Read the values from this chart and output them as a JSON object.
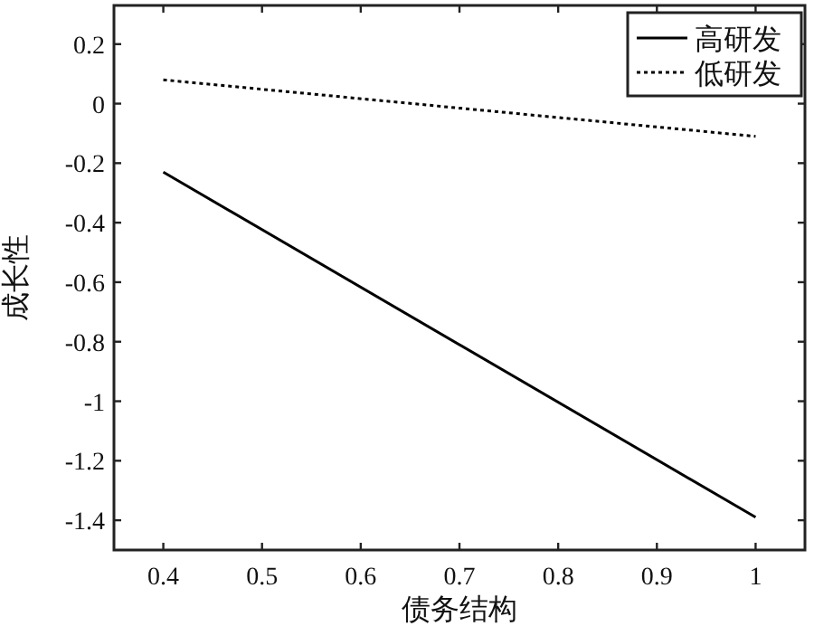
{
  "chart_data": {
    "type": "line",
    "xlabel": "债务结构",
    "ylabel": "成长性",
    "x": [
      0.4,
      1
    ],
    "series": [
      {
        "name": "高研发",
        "color": "#000000",
        "line_style": "solid",
        "values": [
          -0.23,
          -1.39
        ]
      },
      {
        "name": "低研发",
        "color": "#000000",
        "line_style": "dotted",
        "values": [
          0.08,
          -0.11
        ]
      }
    ],
    "xlim": [
      0.35,
      1.05
    ],
    "ylim": [
      -1.5,
      0.33
    ],
    "xticks": [
      0.4,
      0.5,
      0.6,
      0.7,
      0.8,
      0.9,
      1
    ],
    "yticks": [
      -1.4,
      -1.2,
      -1,
      -0.8,
      -0.6,
      -0.4,
      -0.2,
      0,
      0.2
    ],
    "grid": false,
    "legend": "top right",
    "marker": "none"
  }
}
